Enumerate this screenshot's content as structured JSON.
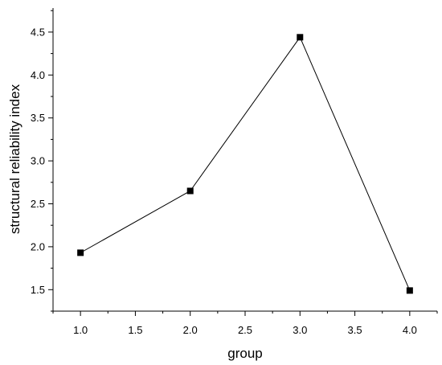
{
  "chart_data": {
    "type": "line",
    "title": "",
    "xlabel": "group",
    "ylabel": "structural reliability index",
    "x": [
      1.0,
      2.0,
      3.0,
      4.0
    ],
    "series": [
      {
        "values": [
          1.93,
          2.65,
          4.44,
          1.49
        ],
        "color": "#000000",
        "marker": "square"
      }
    ],
    "xlim": [
      0.75,
      4.25
    ],
    "ylim": [
      1.25,
      4.78
    ],
    "xticks": [
      1.0,
      1.5,
      2.0,
      2.5,
      3.0,
      3.5,
      4.0
    ],
    "xtick_labels": [
      "1.0",
      "1.5",
      "2.0",
      "2.5",
      "3.0",
      "3.5",
      "4.0"
    ],
    "yticks": [
      1.5,
      2.0,
      2.5,
      3.0,
      3.5,
      4.0,
      4.5
    ],
    "ytick_labels": [
      "1.5",
      "2.0",
      "2.5",
      "3.0",
      "3.5",
      "4.0",
      "4.5"
    ],
    "grid": false,
    "legend": "none"
  }
}
